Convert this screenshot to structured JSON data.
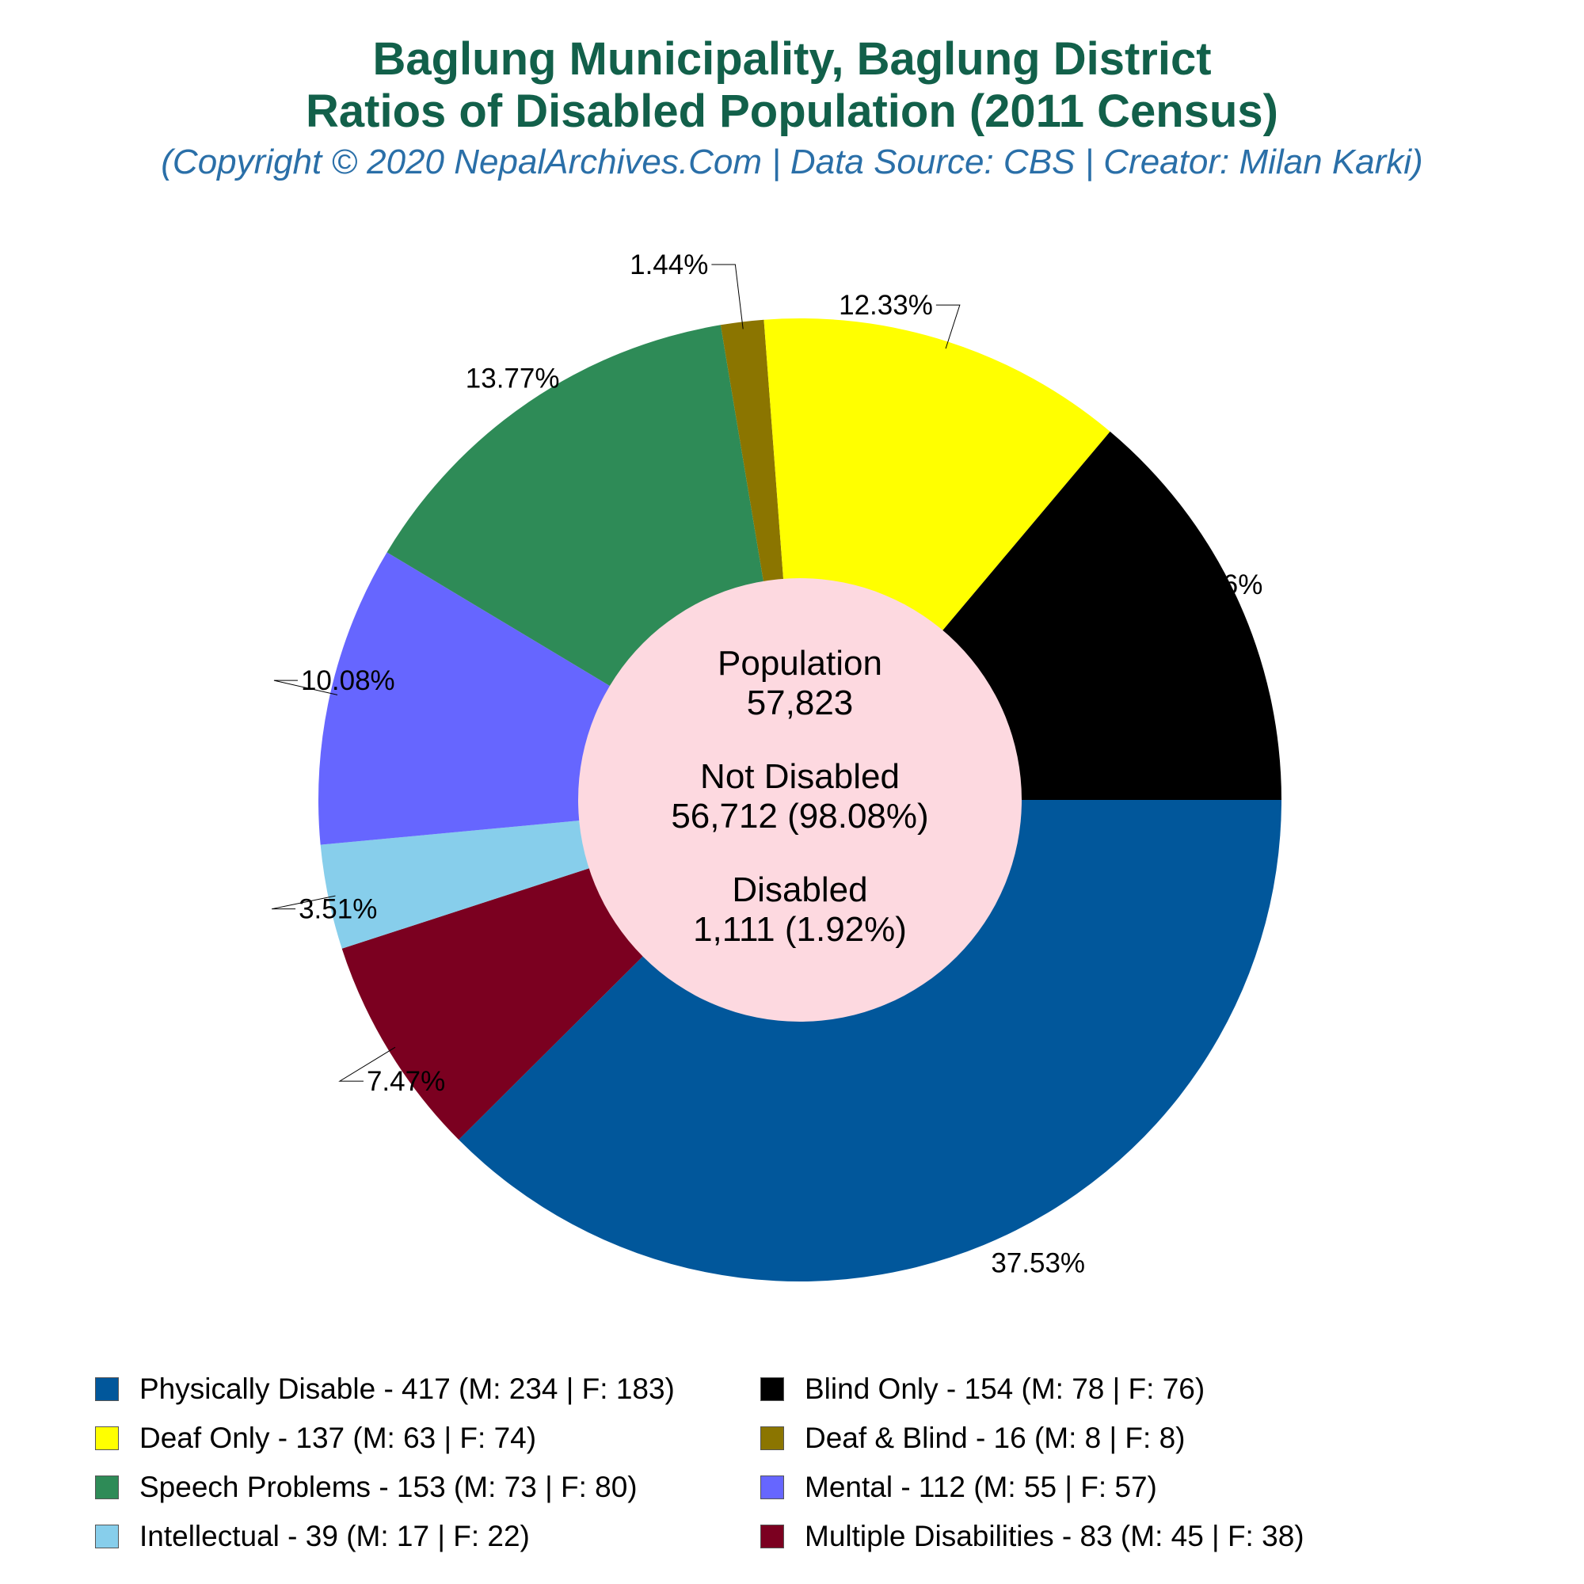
{
  "title_line1": "Baglung Municipality, Baglung District",
  "title_line2": "Ratios of Disabled Population (2011 Census)",
  "subtitle": "(Copyright © 2020 NepalArchives.Com | Data Source: CBS | Creator: Milan Karki)",
  "center": {
    "population_label": "Population",
    "population_value": "57,823",
    "not_disabled_label": "Not Disabled",
    "not_disabled_value": "56,712 (98.08%)",
    "disabled_label": "Disabled",
    "disabled_value": "1,111 (1.92%)"
  },
  "chart_data": {
    "type": "pie",
    "donut": true,
    "title": "Ratios of Disabled Population (2011 Census)",
    "slices": [
      {
        "label": "Physically Disable - 417 (M: 234 | F: 183)",
        "value": 417,
        "percent_label": "37.53%",
        "color": "#01579b"
      },
      {
        "label": "Multiple Disabilities - 83 (M: 45 | F: 38)",
        "value": 83,
        "percent_label": "7.47%",
        "color": "#7b0020"
      },
      {
        "label": "Intellectual - 39 (M: 17 | F: 22)",
        "value": 39,
        "percent_label": "3.51%",
        "color": "#87ceeb"
      },
      {
        "label": "Mental - 112 (M: 55 | F: 57)",
        "value": 112,
        "percent_label": "10.08%",
        "color": "#6666ff"
      },
      {
        "label": "Speech Problems - 153 (M: 73 | F: 80)",
        "value": 153,
        "percent_label": "13.77%",
        "color": "#2e8b57"
      },
      {
        "label": "Deaf & Blind - 16 (M: 8 | F: 8)",
        "value": 16,
        "percent_label": "1.44%",
        "color": "#8b7500"
      },
      {
        "label": "Deaf Only - 137 (M: 63 | F: 74)",
        "value": 137,
        "percent_label": "12.33%",
        "color": "#ffff00"
      },
      {
        "label": "Blind Only - 154 (M: 78 | F: 76)",
        "value": 154,
        "percent_label": "13.86%",
        "color": "#000000"
      }
    ],
    "legend": [
      {
        "label": "Physically Disable - 417 (M: 234 | F: 183)",
        "color": "#01579b"
      },
      {
        "label": "Blind Only - 154 (M: 78 | F: 76)",
        "color": "#000000"
      },
      {
        "label": "Deaf Only - 137 (M: 63 | F: 74)",
        "color": "#ffff00"
      },
      {
        "label": "Deaf & Blind - 16 (M: 8 | F: 8)",
        "color": "#8b7500"
      },
      {
        "label": "Speech Problems - 153 (M: 73 | F: 80)",
        "color": "#2e8b57"
      },
      {
        "label": "Mental - 112 (M: 55 | F: 57)",
        "color": "#6666ff"
      },
      {
        "label": "Intellectual - 39 (M: 17 | F: 22)",
        "color": "#87ceeb"
      },
      {
        "label": "Multiple Disabilities - 83 (M: 45 | F: 38)",
        "color": "#7b0020"
      }
    ],
    "legend_position": "bottom",
    "center_fill": "#fdd9e0"
  }
}
